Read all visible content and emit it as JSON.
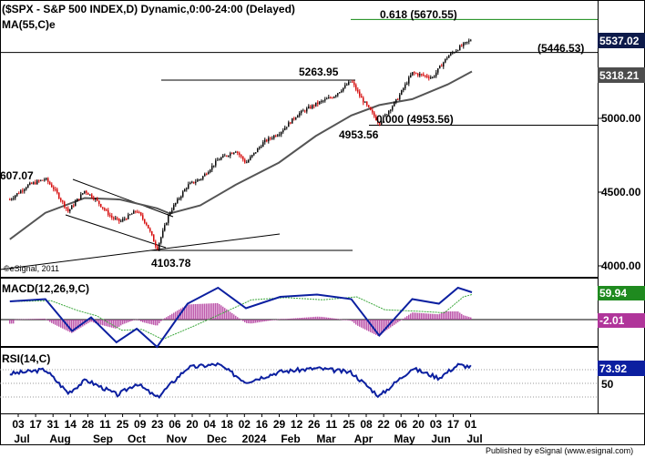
{
  "colors": {
    "border": "#000000",
    "up_candle": "#000000",
    "down_candle": "#d40000",
    "ma_line": "#555555",
    "fib_line": "#138a13",
    "macd_line": "#0b1fa0",
    "macd_signal": "#3da83d",
    "macd_hist": "#b0359a",
    "rsi_line": "#0b1fa0",
    "price_tag": "#0d1a4a",
    "ma_tag": "#4d4d4d",
    "macd_tag": "#1f8a1f",
    "hist_tag": "#b0359a",
    "rsi_tag": "#0b1fa0"
  },
  "header": {
    "title": "($SPX - S&P 500 INDEX,D) Dynamic,0:00-24:00 (Delayed)",
    "ma_label": "MA(55,C)e"
  },
  "annotations": {
    "fib_618": "0.618 (5670.55)",
    "level_5446": "(5446.53)",
    "high_5263": "5263.95",
    "fib_000": "0.000 (4953.56)",
    "low_4953": "4953.56",
    "low_4103": "4103.78",
    "left_price": "607.07",
    "watermark": "©eSignal, 2011"
  },
  "price_axis": {
    "tags": {
      "last_price": "5537.02",
      "ma_value": "5318.21"
    },
    "ticks": [
      "5000.00",
      "4500.00",
      "4000.00"
    ]
  },
  "macd_panel": {
    "label": "MACD(12,26,9,C)",
    "macd_tag": "59.94",
    "hist_tag": "-2.01"
  },
  "rsi_panel": {
    "label": "RSI(14,C)",
    "rsi_tag": "73.92",
    "ticks": [
      "50"
    ]
  },
  "x_axis": {
    "days": [
      "03",
      "17",
      "31",
      "14",
      "28",
      "11",
      "25",
      "09",
      "23",
      "06",
      "20",
      "04",
      "18",
      "02",
      "16",
      "29",
      "12",
      "26",
      "11",
      "25",
      "08",
      "22",
      "06",
      "20",
      "03",
      "17",
      "01"
    ],
    "months": [
      "Jul",
      "Aug",
      "Sep",
      "Oct",
      "Nov",
      "Dec",
      "2024",
      "Feb",
      "Mar",
      "Apr",
      "May",
      "Jun",
      "Jul"
    ]
  },
  "footer": {
    "published": "Published by eSignal (www.esignal.com)"
  },
  "chart_data": {
    "type": "line",
    "title": "($SPX - S&P 500 INDEX,D) Dynamic,0:00-24:00 (Delayed)",
    "x_range": [
      "2023-07-01",
      "2024-07-01"
    ],
    "ylim": [
      3900,
      5800
    ],
    "price_path": [
      {
        "x": "2023-07-03",
        "y": 4450
      },
      {
        "x": "2023-07-17",
        "y": 4545
      },
      {
        "x": "2023-07-31",
        "y": 4590
      },
      {
        "x": "2023-08-07",
        "y": 4520
      },
      {
        "x": "2023-08-18",
        "y": 4370
      },
      {
        "x": "2023-08-31",
        "y": 4510
      },
      {
        "x": "2023-09-08",
        "y": 4455
      },
      {
        "x": "2023-09-21",
        "y": 4330
      },
      {
        "x": "2023-09-28",
        "y": 4300
      },
      {
        "x": "2023-10-11",
        "y": 4375
      },
      {
        "x": "2023-10-19",
        "y": 4280
      },
      {
        "x": "2023-10-27",
        "y": 4117
      },
      {
        "x": "2023-11-06",
        "y": 4365
      },
      {
        "x": "2023-11-20",
        "y": 4545
      },
      {
        "x": "2023-12-01",
        "y": 4595
      },
      {
        "x": "2023-12-14",
        "y": 4720
      },
      {
        "x": "2023-12-28",
        "y": 4783
      },
      {
        "x": "2024-01-05",
        "y": 4697
      },
      {
        "x": "2024-01-19",
        "y": 4839
      },
      {
        "x": "2024-02-01",
        "y": 4906
      },
      {
        "x": "2024-02-15",
        "y": 5029
      },
      {
        "x": "2024-02-29",
        "y": 5096
      },
      {
        "x": "2024-03-14",
        "y": 5150
      },
      {
        "x": "2024-03-28",
        "y": 5254
      },
      {
        "x": "2024-04-04",
        "y": 5147
      },
      {
        "x": "2024-04-19",
        "y": 4967
      },
      {
        "x": "2024-05-03",
        "y": 5127
      },
      {
        "x": "2024-05-15",
        "y": 5308
      },
      {
        "x": "2024-05-31",
        "y": 5277
      },
      {
        "x": "2024-06-12",
        "y": 5421
      },
      {
        "x": "2024-06-20",
        "y": 5473
      },
      {
        "x": "2024-07-01",
        "y": 5537
      }
    ],
    "ma55": [
      {
        "x": "2023-07-03",
        "y": 4180
      },
      {
        "x": "2023-07-31",
        "y": 4360
      },
      {
        "x": "2023-08-31",
        "y": 4460
      },
      {
        "x": "2023-09-28",
        "y": 4450
      },
      {
        "x": "2023-10-27",
        "y": 4390
      },
      {
        "x": "2023-11-06",
        "y": 4355
      },
      {
        "x": "2023-11-30",
        "y": 4410
      },
      {
        "x": "2023-12-28",
        "y": 4550
      },
      {
        "x": "2024-01-31",
        "y": 4700
      },
      {
        "x": "2024-02-29",
        "y": 4880
      },
      {
        "x": "2024-03-28",
        "y": 5020
      },
      {
        "x": "2024-04-19",
        "y": 5090
      },
      {
        "x": "2024-05-15",
        "y": 5130
      },
      {
        "x": "2024-06-12",
        "y": 5230
      },
      {
        "x": "2024-07-01",
        "y": 5318
      }
    ],
    "levels": [
      {
        "label": "0.618 (5670.55)",
        "value": 5670.55
      },
      {
        "label": "(5446.53)",
        "value": 5446.53
      },
      {
        "label": "0.000 (4953.56)",
        "value": 4953.56
      }
    ],
    "macd": {
      "macd": [
        {
          "x": "2023-07-03",
          "y": 40
        },
        {
          "x": "2023-07-31",
          "y": 45
        },
        {
          "x": "2023-08-21",
          "y": -25
        },
        {
          "x": "2023-09-05",
          "y": 5
        },
        {
          "x": "2023-09-25",
          "y": -50
        },
        {
          "x": "2023-10-11",
          "y": -20
        },
        {
          "x": "2023-10-27",
          "y": -60
        },
        {
          "x": "2023-11-20",
          "y": 35
        },
        {
          "x": "2023-12-14",
          "y": 70
        },
        {
          "x": "2024-01-05",
          "y": 25
        },
        {
          "x": "2024-02-01",
          "y": 50
        },
        {
          "x": "2024-03-01",
          "y": 55
        },
        {
          "x": "2024-03-28",
          "y": 45
        },
        {
          "x": "2024-04-19",
          "y": -35
        },
        {
          "x": "2024-05-15",
          "y": 45
        },
        {
          "x": "2024-06-05",
          "y": 35
        },
        {
          "x": "2024-06-20",
          "y": 70
        },
        {
          "x": "2024-07-01",
          "y": 60
        }
      ],
      "last_macd": 59.94,
      "last_histogram": -2.01
    },
    "rsi": {
      "values": [
        {
          "x": "2023-07-03",
          "y": 64
        },
        {
          "x": "2023-07-31",
          "y": 70
        },
        {
          "x": "2023-08-18",
          "y": 36
        },
        {
          "x": "2023-09-01",
          "y": 55
        },
        {
          "x": "2023-09-26",
          "y": 33
        },
        {
          "x": "2023-10-11",
          "y": 50
        },
        {
          "x": "2023-10-27",
          "y": 29
        },
        {
          "x": "2023-11-20",
          "y": 73
        },
        {
          "x": "2023-12-14",
          "y": 78
        },
        {
          "x": "2024-01-05",
          "y": 52
        },
        {
          "x": "2024-02-01",
          "y": 67
        },
        {
          "x": "2024-03-01",
          "y": 72
        },
        {
          "x": "2024-03-28",
          "y": 66
        },
        {
          "x": "2024-04-19",
          "y": 31
        },
        {
          "x": "2024-05-15",
          "y": 72
        },
        {
          "x": "2024-06-05",
          "y": 58
        },
        {
          "x": "2024-06-20",
          "y": 77
        },
        {
          "x": "2024-07-01",
          "y": 74
        }
      ],
      "last": 73.92,
      "ticks": [
        50
      ]
    }
  }
}
